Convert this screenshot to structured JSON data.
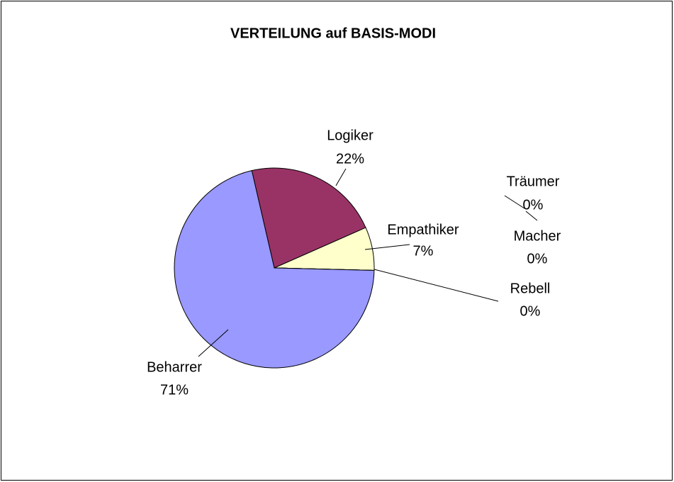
{
  "chart_data": {
    "type": "pie",
    "title": "VERTEILUNG auf BASIS-MODI",
    "categories": [
      "Logiker",
      "Empathiker",
      "Rebell",
      "Macher",
      "Träumer",
      "Beharrer"
    ],
    "values": [
      22,
      7,
      0,
      0,
      0,
      71
    ],
    "value_labels": [
      "22%",
      "7%",
      "0%",
      "0%",
      "0%",
      "71%"
    ],
    "colors": [
      "#993366",
      "#ffffcc",
      "#ccffff",
      "#660066",
      "#ff8080",
      "#9999ff"
    ]
  }
}
